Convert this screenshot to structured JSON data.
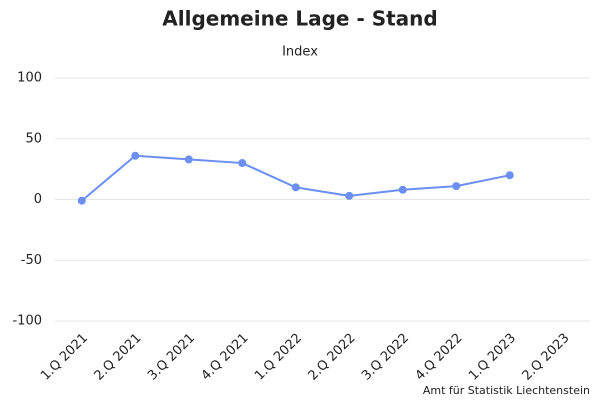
{
  "chart_data": {
    "type": "line",
    "title": "Allgemeine Lage - Stand",
    "subtitle": "Index",
    "categories": [
      "1.Q 2021",
      "2.Q 2021",
      "3.Q 2021",
      "4.Q 2021",
      "1.Q 2022",
      "2.Q 2022",
      "3.Q 2022",
      "4.Q 2022",
      "1.Q 2023",
      "2.Q 2023"
    ],
    "series": [
      {
        "name": "Index",
        "color": "#6b8ff2",
        "values": [
          -1,
          36,
          33,
          30,
          10,
          3,
          8,
          11,
          20,
          null
        ]
      }
    ],
    "ylim": [
      -100,
      100
    ],
    "yticks": [
      -100,
      -50,
      0,
      50,
      100
    ],
    "grid": true,
    "source": "Amt für Statistik Liechtenstein"
  }
}
